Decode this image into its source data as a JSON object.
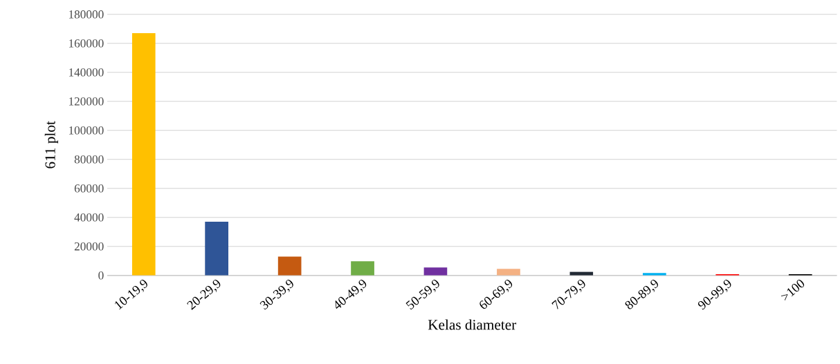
{
  "chart_data": {
    "type": "bar",
    "xlabel": "Kelas diameter",
    "ylabel": "611 plot",
    "categories": [
      "10-19,9",
      "20-29,9",
      "30-39,9",
      "40-49,9",
      "50-59,9",
      "60-69,9",
      "70-79,9",
      "80-89,9",
      "90-99,9",
      ">100"
    ],
    "values": [
      167000,
      37000,
      13000,
      9700,
      5500,
      4500,
      2500,
      1600,
      800,
      800
    ],
    "colors": [
      "#ffc000",
      "#2f5597",
      "#c55a11",
      "#70ad47",
      "#7030a0",
      "#f4b183",
      "#222a35",
      "#00b0f0",
      "#ff0000",
      "#000000"
    ],
    "ylim": [
      0,
      180000
    ],
    "yticks": [
      0,
      20000,
      40000,
      60000,
      80000,
      100000,
      120000,
      140000,
      160000,
      180000
    ],
    "grid": "y"
  }
}
